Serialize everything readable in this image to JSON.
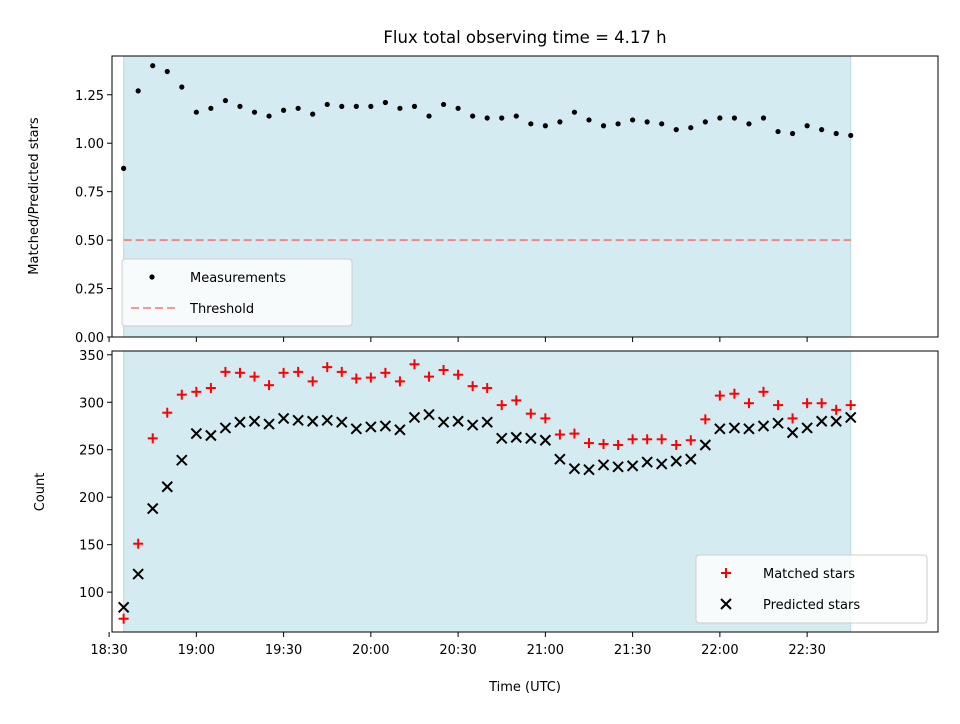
{
  "title": "Flux total observing time = 4.17 h",
  "colors": {
    "band": "#d4ebf1",
    "band_edge": "#b9dce6",
    "measurements": "#000000",
    "threshold": "#f07878",
    "matched": "#ff0000",
    "predicted": "#000000"
  },
  "chart_data": [
    {
      "type": "scatter",
      "ylabel": "Matched/Predicted stars",
      "ylim": [
        0,
        1.45
      ],
      "yticks": [
        0.0,
        0.25,
        0.5,
        0.75,
        1.0,
        1.25
      ],
      "yticklabels": [
        "0.00",
        "0.25",
        "0.50",
        "0.75",
        "1.00",
        "1.25"
      ],
      "xlim_minutes": [
        1111,
        1395
      ],
      "xticks_minutes": [
        1110,
        1140,
        1170,
        1200,
        1230,
        1260,
        1290,
        1320,
        1350
      ],
      "shaded_span_minutes": [
        1115,
        1365
      ],
      "legend_position": "lower-left",
      "series": [
        {
          "name": "Measurements",
          "marker": "dot",
          "x_minutes": [
            1115,
            1120,
            1125,
            1130,
            1135,
            1140,
            1145,
            1150,
            1155,
            1160,
            1165,
            1170,
            1175,
            1180,
            1185,
            1190,
            1195,
            1200,
            1205,
            1210,
            1215,
            1220,
            1225,
            1230,
            1235,
            1240,
            1245,
            1250,
            1255,
            1260,
            1265,
            1270,
            1275,
            1280,
            1285,
            1290,
            1295,
            1300,
            1305,
            1310,
            1315,
            1320,
            1325,
            1330,
            1335,
            1340,
            1345,
            1350,
            1355,
            1360,
            1365
          ],
          "values": [
            0.87,
            1.27,
            1.4,
            1.37,
            1.29,
            1.16,
            1.18,
            1.22,
            1.19,
            1.16,
            1.14,
            1.17,
            1.18,
            1.15,
            1.2,
            1.19,
            1.19,
            1.19,
            1.21,
            1.18,
            1.19,
            1.14,
            1.2,
            1.18,
            1.14,
            1.13,
            1.13,
            1.14,
            1.1,
            1.09,
            1.11,
            1.16,
            1.12,
            1.09,
            1.1,
            1.12,
            1.11,
            1.1,
            1.07,
            1.08,
            1.11,
            1.13,
            1.13,
            1.1,
            1.13,
            1.06,
            1.05,
            1.09,
            1.07,
            1.05,
            1.04
          ]
        },
        {
          "name": "Threshold",
          "marker": "dashed-line",
          "x_minutes": [
            1115,
            1365
          ],
          "values": [
            0.5,
            0.5
          ]
        }
      ]
    },
    {
      "type": "scatter",
      "xlabel": "Time (UTC)",
      "ylabel": "Count",
      "ylim": [
        58,
        354
      ],
      "yticks": [
        100,
        150,
        200,
        250,
        300,
        350
      ],
      "yticklabels": [
        "100",
        "150",
        "200",
        "250",
        "300",
        "350"
      ],
      "xlim_minutes": [
        1111,
        1395
      ],
      "xticks_minutes": [
        1110,
        1140,
        1170,
        1200,
        1230,
        1260,
        1290,
        1320,
        1350
      ],
      "xticklabels": [
        "18:30",
        "19:00",
        "19:30",
        "20:00",
        "20:30",
        "21:00",
        "21:30",
        "22:00",
        "22:30"
      ],
      "shaded_span_minutes": [
        1115,
        1365
      ],
      "legend_position": "lower-right",
      "series": [
        {
          "name": "Matched stars",
          "marker": "plus",
          "x_minutes": [
            1115,
            1120,
            1125,
            1130,
            1135,
            1140,
            1145,
            1150,
            1155,
            1160,
            1165,
            1170,
            1175,
            1180,
            1185,
            1190,
            1195,
            1200,
            1205,
            1210,
            1215,
            1220,
            1225,
            1230,
            1235,
            1240,
            1245,
            1250,
            1255,
            1260,
            1265,
            1270,
            1275,
            1280,
            1285,
            1290,
            1295,
            1300,
            1305,
            1310,
            1315,
            1320,
            1325,
            1330,
            1335,
            1340,
            1345,
            1350,
            1355,
            1360,
            1365
          ],
          "values": [
            72,
            151,
            262,
            289,
            308,
            311,
            315,
            332,
            331,
            327,
            318,
            331,
            332,
            322,
            337,
            332,
            325,
            326,
            331,
            322,
            340,
            327,
            334,
            329,
            317,
            315,
            297,
            302,
            288,
            283,
            266,
            267,
            257,
            256,
            255,
            261,
            261,
            261,
            255,
            260,
            282,
            307,
            309,
            299,
            311,
            297,
            283,
            299,
            299,
            292,
            297
          ]
        },
        {
          "name": "Predicted stars",
          "marker": "x",
          "x_minutes": [
            1115,
            1120,
            1125,
            1130,
            1135,
            1140,
            1145,
            1150,
            1155,
            1160,
            1165,
            1170,
            1175,
            1180,
            1185,
            1190,
            1195,
            1200,
            1205,
            1210,
            1215,
            1220,
            1225,
            1230,
            1235,
            1240,
            1245,
            1250,
            1255,
            1260,
            1265,
            1270,
            1275,
            1280,
            1285,
            1290,
            1295,
            1300,
            1305,
            1310,
            1315,
            1320,
            1325,
            1330,
            1335,
            1340,
            1345,
            1350,
            1355,
            1360,
            1365
          ],
          "values": [
            84,
            119,
            188,
            211,
            239,
            267,
            265,
            273,
            279,
            280,
            277,
            283,
            281,
            280,
            281,
            279,
            272,
            274,
            275,
            271,
            284,
            287,
            279,
            280,
            276,
            279,
            262,
            263,
            262,
            260,
            240,
            230,
            229,
            234,
            232,
            233,
            237,
            235,
            238,
            240,
            255,
            272,
            273,
            272,
            275,
            278,
            268,
            273,
            280,
            280,
            284
          ]
        }
      ]
    }
  ]
}
